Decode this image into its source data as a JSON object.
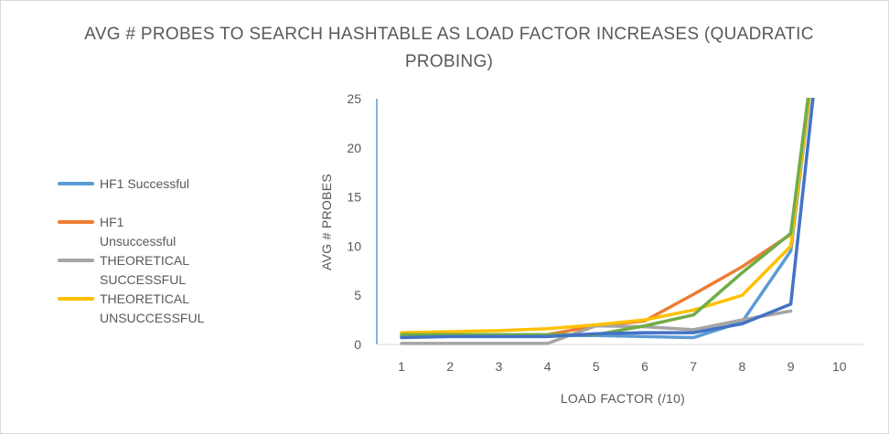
{
  "chart_data": {
    "type": "line",
    "title_line1": "AVG # PROBES TO SEARCH HASHTABLE AS LOAD FACTOR INCREASES (QUADRATIC",
    "title_line2": "PROBING)",
    "xlabel": "LOAD FACTOR (/10)",
    "ylabel": "AVG # PROBES",
    "categories": [
      "1",
      "2",
      "3",
      "4",
      "5",
      "6",
      "7",
      "8",
      "9",
      "10"
    ],
    "yticks": [
      "0",
      "5",
      "10",
      "15",
      "20",
      "25"
    ],
    "ylim": [
      0,
      25
    ],
    "grid": false,
    "legend_position": "left",
    "series": [
      {
        "name": "HF1 Successful",
        "color": "#5b9bd5",
        "values": [
          0.8,
          0.9,
          0.9,
          0.9,
          0.9,
          0.8,
          0.7,
          2.3,
          9.5,
          50
        ]
      },
      {
        "name": "HF1 Unsuccessful",
        "color": "#ed7d31",
        "values": [
          1.0,
          1.0,
          1.0,
          1.0,
          1.9,
          2.4,
          5.1,
          7.9,
          11.2,
          50
        ]
      },
      {
        "name": "THEORETICAL SUCCESSFUL",
        "color": "#a5a5a5",
        "values": [
          0.1,
          0.1,
          0.1,
          0.1,
          1.9,
          1.8,
          1.5,
          2.5,
          3.4,
          null
        ]
      },
      {
        "name": "THEORETICAL UNSUCCESSFUL",
        "color": "#ffc000",
        "values": [
          1.2,
          1.3,
          1.4,
          1.6,
          2.0,
          2.5,
          3.5,
          5.0,
          10.0,
          50
        ]
      },
      {
        "name": "",
        "color": "#70ad47",
        "values": [
          1.0,
          1.0,
          1.0,
          1.0,
          1.0,
          1.9,
          3.0,
          7.3,
          11.3,
          50
        ]
      },
      {
        "name": "",
        "color": "#4472c4",
        "values": [
          0.7,
          0.8,
          0.8,
          0.8,
          1.1,
          1.2,
          1.2,
          2.1,
          4.1,
          50
        ]
      }
    ]
  }
}
